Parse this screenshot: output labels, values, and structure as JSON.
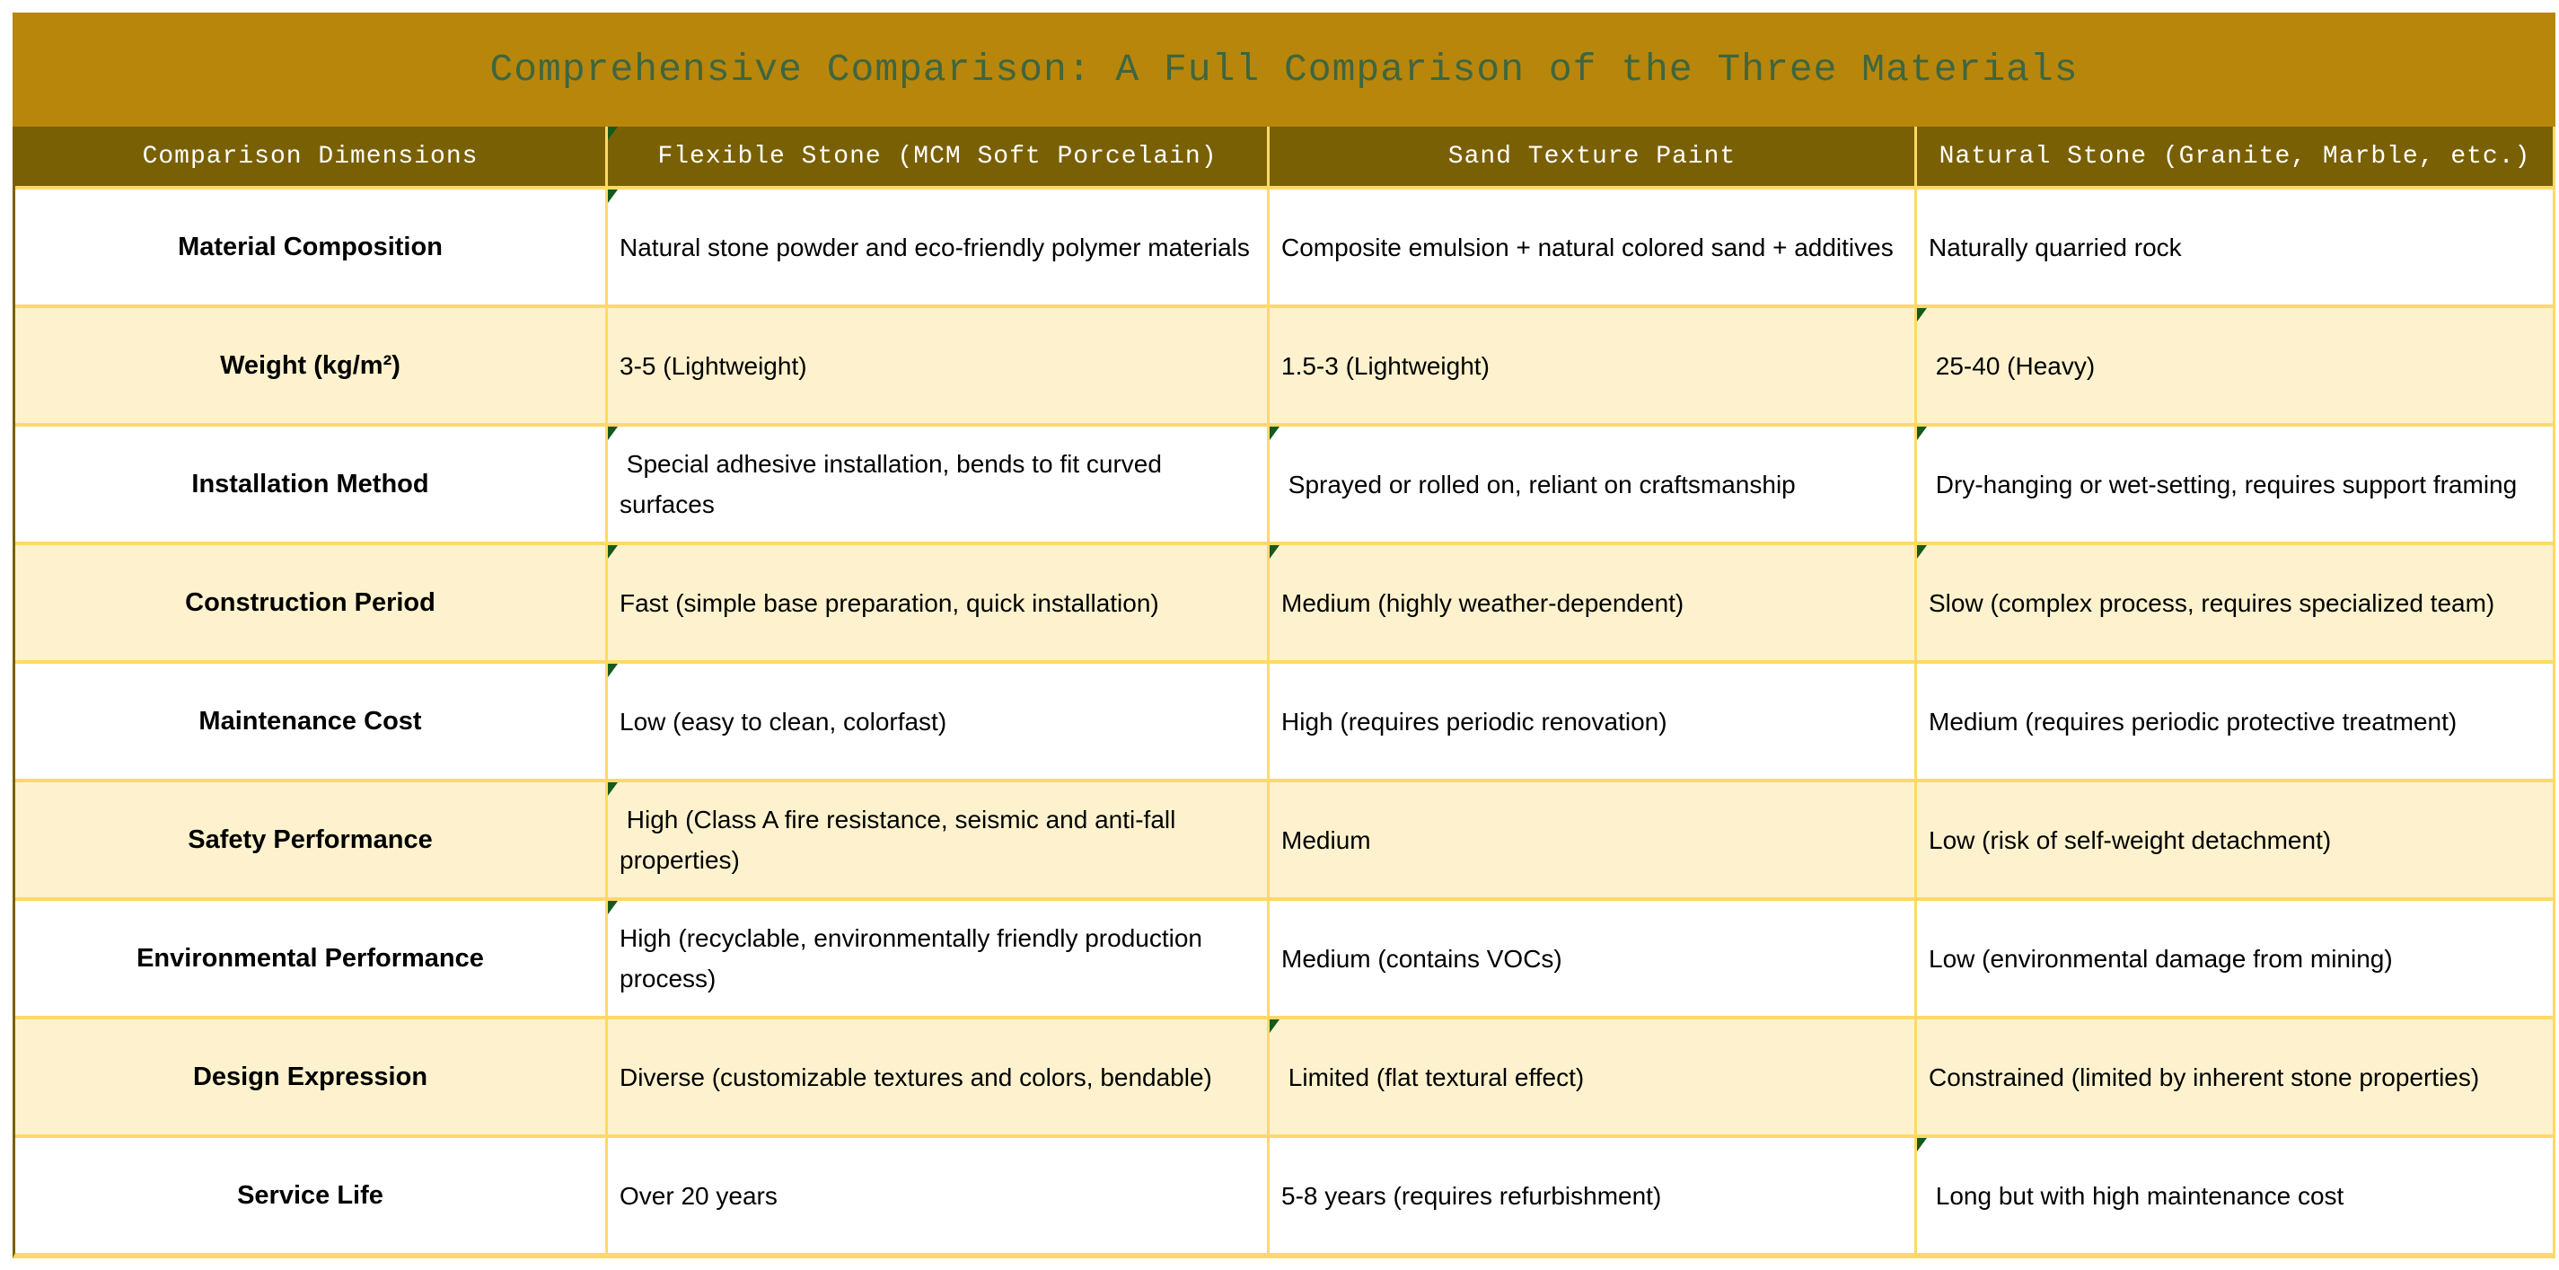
{
  "title": "Comprehensive Comparison: A Full Comparison of the Three Materials",
  "colors": {
    "title_bar_bg": "#B8860B",
    "title_text": "#3F663E",
    "header_bg": "#7A6005",
    "header_text": "#FFFFFF",
    "row_white_bg": "#FFFFFF",
    "row_cream_bg": "#FDF2CD",
    "grid_line": "#FFD966",
    "outer_left_border": "#7A6005",
    "comment_marker": "#155A1B"
  },
  "icons": {
    "comment_marker_icon": "small dark-green triangle at top-left corner of annotated cells"
  },
  "table": {
    "columns": [
      "Comparison Dimensions",
      "Flexible Stone (MCM Soft Porcelain)",
      "Sand Texture Paint",
      "Natural Stone (Granite, Marble, etc.)"
    ],
    "rows": [
      {
        "dimension": "Material Composition",
        "flexible_stone": "Natural stone powder and eco-friendly polymer materials",
        "sand_texture_paint": "Composite emulsion + natural colored sand + additives",
        "natural_stone": "Naturally quarried rock"
      },
      {
        "dimension": "Weight (kg/m²)",
        "flexible_stone": "3-5 (Lightweight)",
        "sand_texture_paint": "1.5-3 (Lightweight)",
        "natural_stone": " 25-40 (Heavy)"
      },
      {
        "dimension": "Installation Method",
        "flexible_stone": " Special adhesive installation, bends to fit curved surfaces",
        "sand_texture_paint": " Sprayed or rolled on, reliant on craftsmanship",
        "natural_stone": " Dry-hanging or wet-setting, requires support framing"
      },
      {
        "dimension": "Construction Period",
        "flexible_stone": "Fast (simple base preparation, quick installation)",
        "sand_texture_paint": "Medium (highly weather-dependent)",
        "natural_stone": "Slow (complex process, requires specialized team)"
      },
      {
        "dimension": "Maintenance Cost",
        "flexible_stone": "Low (easy to clean, colorfast)",
        "sand_texture_paint": "High (requires periodic renovation)",
        "natural_stone": "Medium (requires periodic protective treatment)"
      },
      {
        "dimension": "Safety Performance",
        "flexible_stone": " High (Class A fire resistance, seismic and anti-fall properties)",
        "sand_texture_paint": "Medium",
        "natural_stone": "Low (risk of self-weight detachment)"
      },
      {
        "dimension": "Environmental Performance",
        "flexible_stone": "High (recyclable, environmentally friendly production process)",
        "sand_texture_paint": "Medium (contains VOCs)",
        "natural_stone": "Low (environmental damage from mining)"
      },
      {
        "dimension": "Design Expression",
        "flexible_stone": "Diverse (customizable textures and colors, bendable)",
        "sand_texture_paint": " Limited (flat textural effect)",
        "natural_stone": "Constrained (limited by inherent stone properties)"
      },
      {
        "dimension": "Service Life",
        "flexible_stone": "Over 20 years",
        "sand_texture_paint": "5-8 years (requires refurbishment)",
        "natural_stone": " Long but with high maintenance cost"
      }
    ],
    "comment_marker_cells": [
      "h2",
      "r1c2",
      "r2c4",
      "r3c2",
      "r3c3",
      "r3c4",
      "r4c2",
      "r4c3",
      "r4c4",
      "r5c2",
      "r6c2",
      "r7c2",
      "r8c3",
      "r9c4"
    ]
  }
}
